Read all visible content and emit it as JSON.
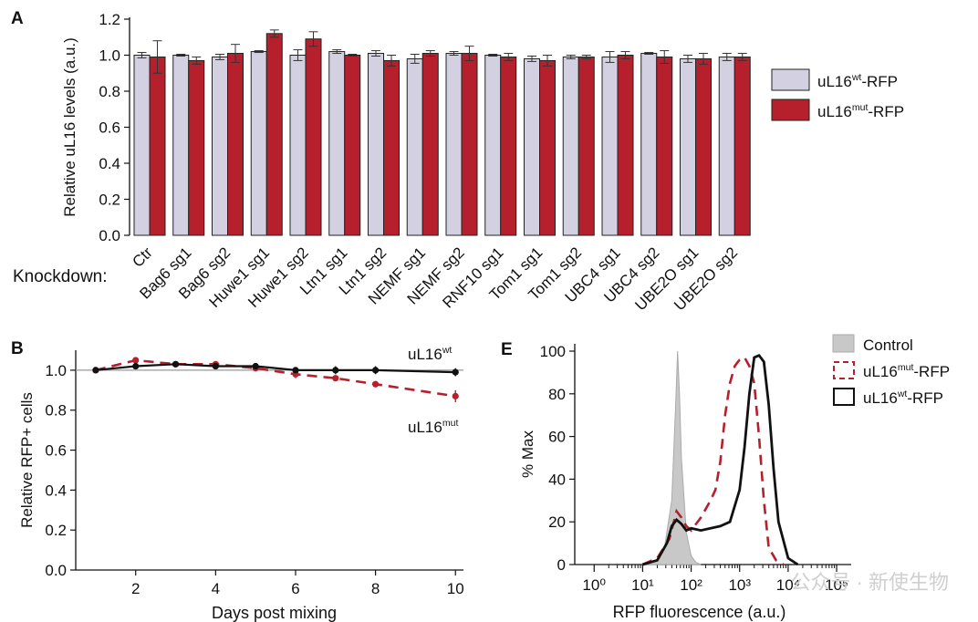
{
  "panel_labels": {
    "a": "A",
    "b": "B",
    "e": "E"
  },
  "watermark": "公众号 · 新使生物",
  "colors": {
    "wt": "#d3d1e1",
    "mut": "#b5202c",
    "black": "#111111",
    "control": "#c8c8c8",
    "grid": "#999999"
  },
  "chart_data": [
    {
      "id": "A",
      "type": "bar",
      "title": "",
      "ylabel": "Relative uL16 levels (a.u.)",
      "xlabel": "Knockdown:",
      "ylim": [
        0,
        1.2
      ],
      "yticks": [
        "0.0",
        "0.2",
        "0.4",
        "0.6",
        "0.8",
        "1.0",
        "1.2"
      ],
      "categories": [
        "Ctr",
        "Bag6 sg1",
        "Bag6 sg2",
        "Huwe1 sg1",
        "Huwe1 sg2",
        "Ltn1 sg1",
        "Ltn1 sg2",
        "NEMF sg1",
        "NEMF sg2",
        "RNF10 sg1",
        "Tom1 sg1",
        "Tom1 sg2",
        "UBC4 sg1",
        "UBC4 sg2",
        "UBE2O sg1",
        "UBE2O sg2"
      ],
      "series": [
        {
          "name": "uL16wt-RFP",
          "legend_base": "uL16",
          "legend_sup": "wt",
          "legend_suffix": "-RFP",
          "values": [
            1.0,
            1.0,
            0.99,
            1.02,
            1.0,
            1.02,
            1.01,
            0.98,
            1.01,
            1.0,
            0.98,
            0.99,
            0.99,
            1.01,
            0.98,
            0.99
          ],
          "errors": [
            0.015,
            0.005,
            0.015,
            0.005,
            0.03,
            0.01,
            0.015,
            0.025,
            0.01,
            0.005,
            0.015,
            0.01,
            0.03,
            0.005,
            0.02,
            0.02
          ]
        },
        {
          "name": "uL16mut-RFP",
          "legend_base": "uL16",
          "legend_sup": "mut",
          "legend_suffix": "-RFP",
          "values": [
            0.99,
            0.97,
            1.01,
            1.12,
            1.09,
            1.0,
            0.97,
            1.01,
            1.01,
            0.99,
            0.97,
            0.99,
            1.0,
            0.99,
            0.98,
            0.99
          ],
          "errors": [
            0.09,
            0.02,
            0.05,
            0.02,
            0.04,
            0.005,
            0.03,
            0.015,
            0.04,
            0.02,
            0.03,
            0.01,
            0.02,
            0.035,
            0.03,
            0.02
          ]
        }
      ],
      "legend": "right"
    },
    {
      "id": "B",
      "type": "line",
      "ylabel": "Relative RFP+ cells",
      "xlabel": "Days post mixing",
      "xlim": [
        0.5,
        10.2
      ],
      "ylim": [
        0,
        1.1
      ],
      "xticks": [
        2,
        4,
        6,
        8,
        10
      ],
      "yticks": [
        "0.0",
        "0.2",
        "0.4",
        "0.6",
        "0.8",
        "1.0"
      ],
      "reference_y": 1.0,
      "series": [
        {
          "name": "uL16wt",
          "label_base": "uL16",
          "label_sup": "wt",
          "style": "solid",
          "x": [
            1,
            2,
            3,
            4,
            5,
            6,
            7,
            8,
            10
          ],
          "y": [
            1.0,
            1.02,
            1.03,
            1.02,
            1.02,
            1.0,
            1.0,
            1.0,
            0.99
          ],
          "errors": [
            0.005,
            0.01,
            0.01,
            0.01,
            0.01,
            0.01,
            0.02,
            0.02,
            0.02
          ]
        },
        {
          "name": "uL16mut",
          "label_base": "uL16",
          "label_sup": "mut",
          "style": "dashed",
          "x": [
            1,
            2,
            3,
            4,
            5,
            6,
            7,
            8,
            10
          ],
          "y": [
            1.0,
            1.05,
            1.03,
            1.03,
            1.01,
            0.98,
            0.96,
            0.93,
            0.87
          ],
          "errors": [
            0.005,
            0.01,
            0.01,
            0.01,
            0.01,
            0.02,
            0.01,
            0.01,
            0.03
          ]
        }
      ]
    },
    {
      "id": "E",
      "type": "line",
      "subtype": "histogram",
      "ylabel": "% Max",
      "xlabel": "RFP fluorescence (a.u.)",
      "xscale": "log",
      "xlim_log10": [
        -0.4,
        5.3
      ],
      "ylim": [
        0,
        100
      ],
      "xtick_labels": [
        "10⁰",
        "10¹",
        "10²",
        "10³",
        "10⁴",
        "10⁵"
      ],
      "xtick_log10": [
        0,
        1,
        2,
        3,
        4,
        5
      ],
      "yticks": [
        "0",
        "20",
        "40",
        "60",
        "80",
        "100"
      ],
      "series": [
        {
          "name": "Control",
          "label": "Control",
          "style": "filled",
          "log10x": [
            1.0,
            1.3,
            1.45,
            1.6,
            1.68,
            1.72,
            1.76,
            1.8,
            1.9,
            2.0,
            2.1,
            2.2
          ],
          "y": [
            0,
            2,
            8,
            30,
            75,
            100,
            80,
            50,
            15,
            4,
            1,
            0
          ]
        },
        {
          "name": "uL16mut-RFP",
          "label_base": "uL16",
          "label_sup": "mut",
          "label_suffix": "-RFP",
          "style": "dashed",
          "log10x": [
            1.0,
            1.3,
            1.55,
            1.7,
            1.8,
            1.9,
            2.0,
            2.2,
            2.4,
            2.5,
            2.6,
            2.7,
            2.8,
            2.9,
            3.0,
            3.1,
            3.2,
            3.3,
            3.4,
            3.5,
            3.6,
            3.75,
            3.9
          ],
          "y": [
            0,
            3,
            12,
            25,
            22,
            18,
            16,
            22,
            30,
            35,
            48,
            70,
            85,
            93,
            96,
            97,
            93,
            85,
            60,
            30,
            8,
            2,
            0
          ]
        },
        {
          "name": "uL16wt-RFP",
          "label_base": "uL16",
          "label_sup": "wt",
          "label_suffix": "-RFP",
          "style": "solid",
          "log10x": [
            1.0,
            1.3,
            1.5,
            1.6,
            1.7,
            1.8,
            1.9,
            2.0,
            2.2,
            2.4,
            2.6,
            2.8,
            3.0,
            3.1,
            3.2,
            3.3,
            3.4,
            3.5,
            3.6,
            3.7,
            3.8,
            4.0,
            4.2
          ],
          "y": [
            0,
            2,
            10,
            18,
            21,
            19,
            16,
            17,
            16,
            17,
            18,
            20,
            35,
            55,
            80,
            97,
            98,
            95,
            75,
            45,
            20,
            3,
            0
          ]
        }
      ]
    }
  ]
}
